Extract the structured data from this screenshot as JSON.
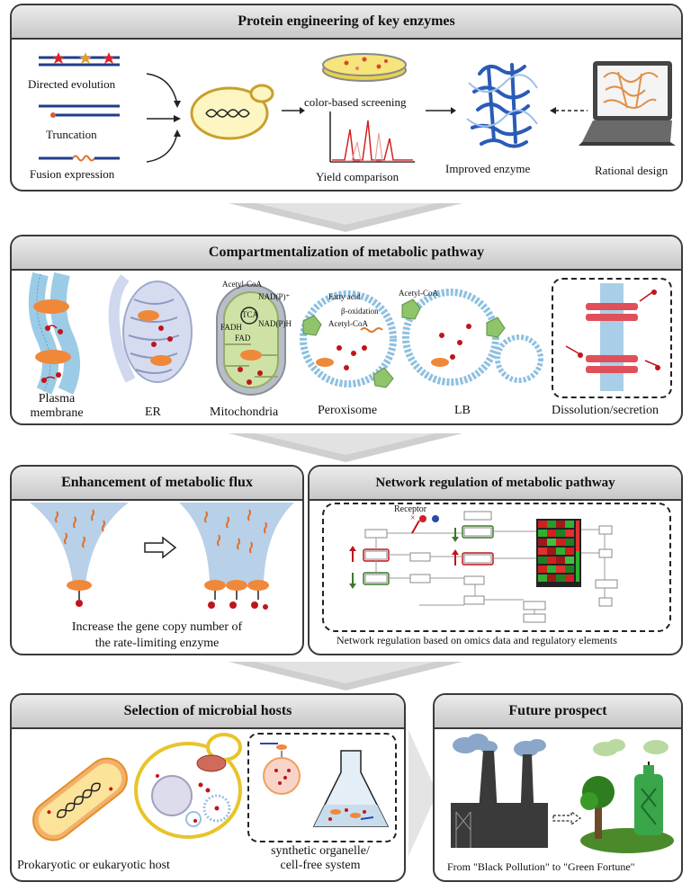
{
  "panels": {
    "protein": {
      "title": "Protein engineering of key enzymes",
      "labels": {
        "directed": "Directed evolution",
        "truncation": "Truncation",
        "fusion": "Fusion expression",
        "color_screening": "color-based screening",
        "yield": "Yield comparison",
        "improved": "Improved enzyme",
        "rational": "Rational design"
      }
    },
    "compartment": {
      "title": "Compartmentalization of metabolic pathway",
      "labels": {
        "plasma": "Plasma\nmembrane",
        "er": "ER",
        "mito": "Mitochondria",
        "perox": "Peroxisome",
        "lb": "LB",
        "dissolution": "Dissolution/secretion"
      },
      "mito_text": {
        "acetyl": "Acetyl-CoA",
        "nadp": "NAD(P)⁺",
        "tca": "TCA",
        "fadh": "FADH",
        "fad": "FAD",
        "nadph": "NAD(P)H"
      },
      "perox_text": {
        "fatty": "Fatty acid",
        "beta": "β-oxidation",
        "acetyl": "Acetyl-CoA"
      },
      "lb_text": {
        "acetyl": "Acetyl-CoA"
      }
    },
    "flux": {
      "title": "Enhancement of metabolic flux",
      "caption": "Increase the gene copy number of\nthe rate-limiting enzyme"
    },
    "network": {
      "title": "Network regulation of metabolic pathway",
      "caption": "Network regulation based on omics data and regulatory elements",
      "receptor": "Receptor"
    },
    "hosts": {
      "title": "Selection of microbial hosts",
      "host_caption": "Prokaryotic or eukaryotic host",
      "synthetic_caption": "synthetic organelle/\ncell-free system"
    },
    "future": {
      "title": "Future prospect",
      "caption": "From \"Black Pollution\" to \"Green Fortune\""
    }
  },
  "colors": {
    "orange": "#f0883a",
    "red": "#c0141c",
    "membrane": "#a9cfe8",
    "green": "#3aa64a",
    "header_gray": "#d6d6d6"
  }
}
